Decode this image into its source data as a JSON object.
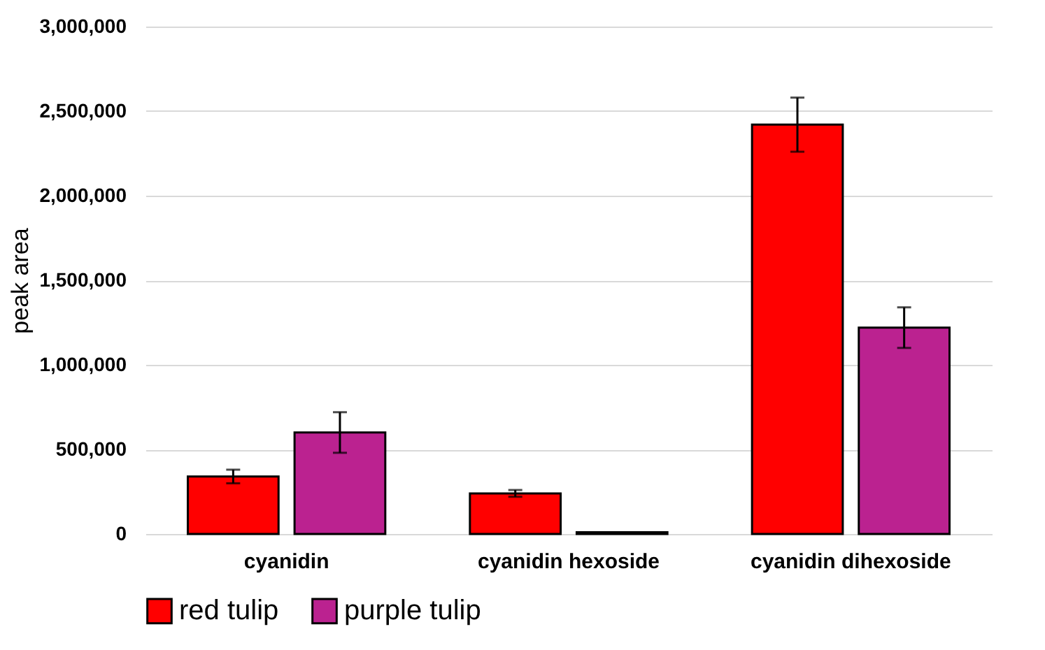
{
  "chart_data": {
    "type": "bar",
    "ylabel": "peak area",
    "categories": [
      "cyanidin",
      "cyanidin hexoside",
      "cyanidin dihexoside"
    ],
    "series": [
      {
        "name": "red tulip",
        "color": "#ff0000",
        "values": [
          340000,
          240000,
          2420000
        ],
        "errors": [
          40000,
          20000,
          160000
        ]
      },
      {
        "name": "purple tulip",
        "color": "#bb2290",
        "values": [
          600000,
          10000,
          1220000
        ],
        "errors": [
          120000,
          null,
          120000
        ]
      }
    ],
    "ylim": [
      0,
      3000000
    ],
    "yticks": [
      0,
      {
        "value": 500000,
        "label": "500,000"
      },
      {
        "value": 1000000,
        "label": "1,000,000"
      },
      {
        "value": 1500000,
        "label": "1,500,000"
      },
      {
        "value": 2000000,
        "label": "2,000,000"
      },
      {
        "value": 2500000,
        "label": "2,500,000"
      },
      {
        "value": 3000000,
        "label": "3,000,000"
      }
    ],
    "grid": "y",
    "legend": "bottom"
  }
}
